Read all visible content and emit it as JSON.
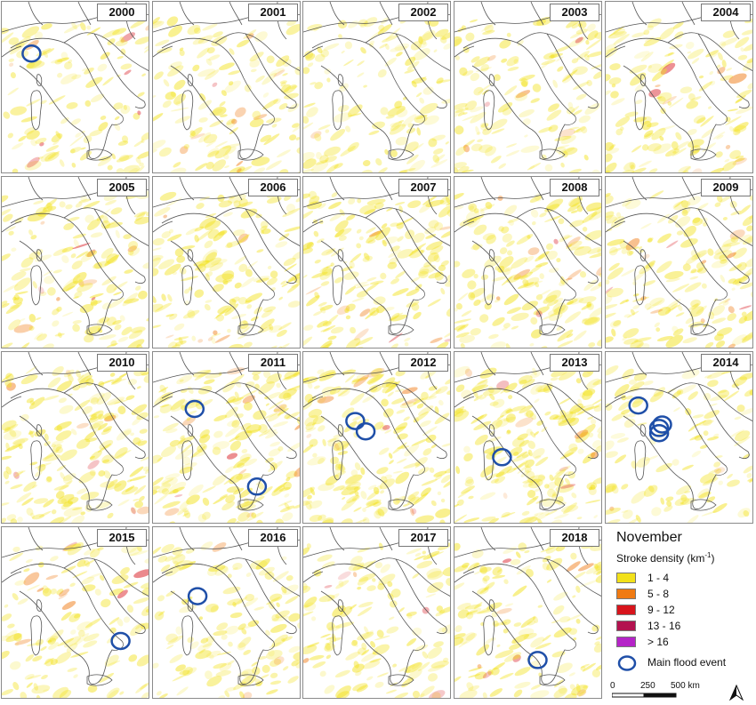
{
  "panels": [
    {
      "year": "2000",
      "floods": [
        [
          0.2,
          0.3
        ]
      ]
    },
    {
      "year": "2001",
      "floods": []
    },
    {
      "year": "2002",
      "floods": []
    },
    {
      "year": "2003",
      "floods": []
    },
    {
      "year": "2004",
      "floods": []
    },
    {
      "year": "2005",
      "floods": []
    },
    {
      "year": "2006",
      "floods": []
    },
    {
      "year": "2007",
      "floods": []
    },
    {
      "year": "2008",
      "floods": []
    },
    {
      "year": "2009",
      "floods": []
    },
    {
      "year": "2010",
      "floods": []
    },
    {
      "year": "2011",
      "floods": [
        [
          0.28,
          0.33
        ],
        [
          0.7,
          0.78
        ]
      ]
    },
    {
      "year": "2012",
      "floods": [
        [
          0.35,
          0.4
        ],
        [
          0.42,
          0.46
        ]
      ]
    },
    {
      "year": "2013",
      "floods": [
        [
          0.32,
          0.61
        ]
      ]
    },
    {
      "year": "2014",
      "floods": [
        [
          0.22,
          0.31
        ],
        [
          0.36,
          0.47
        ],
        [
          0.38,
          0.42
        ],
        [
          0.36,
          0.44
        ]
      ]
    },
    {
      "year": "2015",
      "floods": [
        [
          0.8,
          0.66
        ]
      ]
    },
    {
      "year": "2016",
      "floods": [
        [
          0.3,
          0.4
        ]
      ]
    },
    {
      "year": "2017",
      "floods": []
    },
    {
      "year": "2018",
      "floods": [
        [
          0.56,
          0.77
        ]
      ]
    }
  ],
  "legend": {
    "title": "November",
    "subtitle": "Stroke density (km",
    "subtitle_exp": "-1",
    "subtitle_close": ")",
    "classes": [
      {
        "label": "1 - 4",
        "color": "#f2e11a"
      },
      {
        "label": "5 - 8",
        "color": "#f07a12"
      },
      {
        "label": "9 - 12",
        "color": "#d8141c"
      },
      {
        "label": "13 - 16",
        "color": "#b3124f"
      },
      {
        "label": "> 16",
        "color": "#b524c8"
      }
    ],
    "flood_label": "Main flood event",
    "flood_color": "#1f4fa8",
    "scale": {
      "ticks": [
        "0",
        "250",
        "500 km"
      ]
    }
  },
  "colors": {
    "land_outline": "#555555",
    "density_base": "#f2e11a"
  },
  "icons": {
    "north": "north-arrow-icon",
    "flood": "circle-outline-icon"
  }
}
